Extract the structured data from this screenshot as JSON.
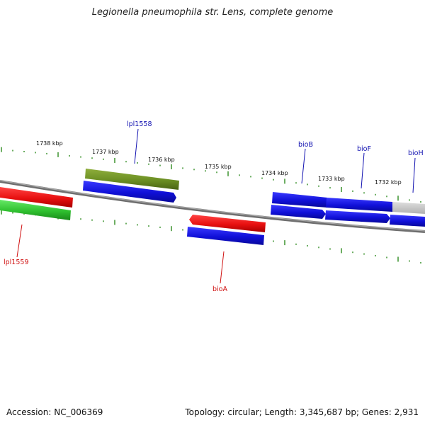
{
  "title": "Legionella pneumophila str. Lens, complete genome",
  "footer": {
    "accession": "Accession: NC_006369",
    "topology": "Topology: circular; Length: 3,345,687 bp; Genes: 2,931"
  },
  "scale_labels": [
    "1738 kbp",
    "1737 kbp",
    "1736 kbp",
    "1735 kbp",
    "1734 kbp",
    "1733 kbp",
    "1732 kbp"
  ],
  "gene_labels": {
    "lpl1558": "lpl1558",
    "lpl1559": "lpl1559",
    "bioA": "bioA",
    "bioB": "bioB",
    "bioF": "bioF",
    "bioH": "bioH"
  },
  "colors": {
    "backbone": "#7a7a7a",
    "tick": "#2e8b1e",
    "forward_label": "#1010b0",
    "reverse_label": "#d01010",
    "blue_gene": "#1a1ae0",
    "red_gene": "#ee1111",
    "green_gene": "#33cc33",
    "olive_gene": "#6b8e23",
    "grey_gene": "#c8c8c8"
  }
}
